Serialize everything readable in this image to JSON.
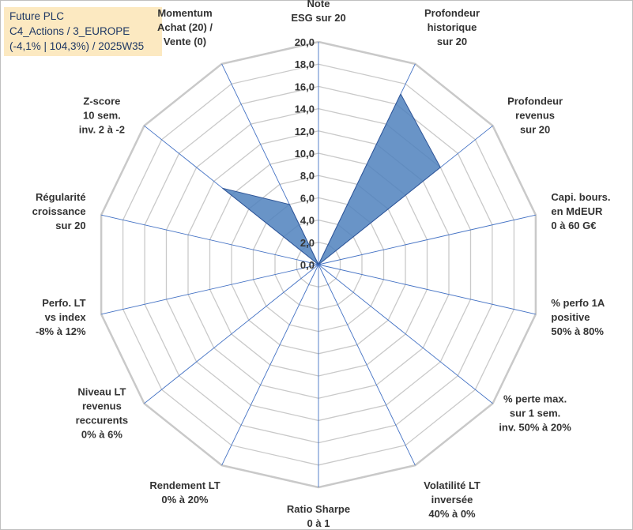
{
  "header": {
    "company": "Future PLC",
    "category": "C4_Actions / 3_EUROPE",
    "stats": "(-4,1% | 104,3%) / 2025W35"
  },
  "chart_data": {
    "type": "radar",
    "ylim": [
      0,
      20
    ],
    "ticks": [
      "0,0",
      "2,0",
      "4,0",
      "6,0",
      "8,0",
      "10,0",
      "12,0",
      "14,0",
      "16,0",
      "18,0",
      "20,0"
    ],
    "categories": [
      [
        "Note",
        "ESG sur 20"
      ],
      [
        "Profondeur",
        "historique",
        "sur 20"
      ],
      [
        "Profondeur",
        "revenus",
        "sur 20"
      ],
      [
        "Capi. bours.",
        "en MdEUR",
        "0 à 60 G€"
      ],
      [
        "% perfo 1A",
        "positive",
        "50% à 80%"
      ],
      [
        "% perte max.",
        "sur 1 sem.",
        "inv. 50% à 20%"
      ],
      [
        "Volatilité LT",
        "inversée",
        "40% à 0%"
      ],
      [
        "Ratio Sharpe",
        "0 à 1"
      ],
      [
        "Rendement LT",
        "0% à 20%"
      ],
      [
        "Niveau LT",
        "revenus",
        "reccurents",
        "0% à 6%"
      ],
      [
        "Perfo. LT",
        "vs index",
        "-8% à 12%"
      ],
      [
        "Régularité",
        "croissance",
        "sur 20"
      ],
      [
        "Z-score",
        "10 sem.",
        "inv. 2 à -2"
      ],
      [
        "Momentum",
        "Achat (20) /",
        "Vente (0)"
      ]
    ],
    "values": [
      0,
      17,
      14,
      0,
      0,
      0,
      0,
      0,
      0,
      0,
      0,
      0,
      11,
      6
    ],
    "colors": {
      "fill": "#4f81bd",
      "spoke": "#4472c4",
      "grid": "#c9c9c9"
    }
  }
}
